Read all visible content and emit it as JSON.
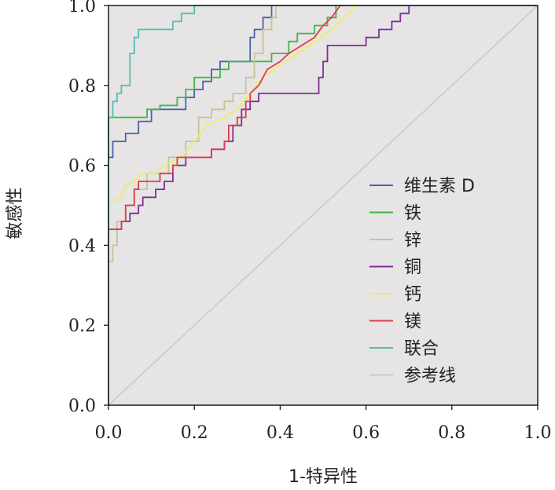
{
  "chart_data": {
    "type": "line",
    "title": "",
    "xlabel": "1-特异性",
    "ylabel": "敏感性",
    "xlim": [
      0,
      1
    ],
    "ylim": [
      0,
      1
    ],
    "x_ticks": [
      "0.0",
      "0.2",
      "0.4",
      "0.6",
      "0.8",
      "1.0"
    ],
    "y_ticks": [
      "0.0",
      "0.2",
      "0.4",
      "0.6",
      "0.8",
      "1.0"
    ],
    "grid": false,
    "legend_position": "right",
    "background": "#e6e4e4",
    "series": [
      {
        "name": "维生素 D",
        "color": "#4a61b0",
        "points": [
          [
            0,
            0
          ],
          [
            0,
            0.62
          ],
          [
            0.01,
            0.62
          ],
          [
            0.01,
            0.66
          ],
          [
            0.04,
            0.66
          ],
          [
            0.04,
            0.68
          ],
          [
            0.07,
            0.68
          ],
          [
            0.07,
            0.71
          ],
          [
            0.1,
            0.71
          ],
          [
            0.1,
            0.74
          ],
          [
            0.18,
            0.74
          ],
          [
            0.18,
            0.77
          ],
          [
            0.2,
            0.77
          ],
          [
            0.2,
            0.79
          ],
          [
            0.22,
            0.79
          ],
          [
            0.22,
            0.81
          ],
          [
            0.24,
            0.81
          ],
          [
            0.24,
            0.84
          ],
          [
            0.26,
            0.84
          ],
          [
            0.26,
            0.86
          ],
          [
            0.33,
            0.86
          ],
          [
            0.33,
            0.92
          ],
          [
            0.34,
            0.92
          ],
          [
            0.34,
            0.94
          ],
          [
            0.36,
            0.94
          ],
          [
            0.36,
            0.97
          ],
          [
            0.38,
            0.97
          ],
          [
            0.38,
            1.0
          ],
          [
            1,
            1
          ]
        ]
      },
      {
        "name": "铁",
        "color": "#3fb64a",
        "points": [
          [
            0,
            0
          ],
          [
            0,
            0.72
          ],
          [
            0.09,
            0.72
          ],
          [
            0.09,
            0.74
          ],
          [
            0.12,
            0.74
          ],
          [
            0.12,
            0.75
          ],
          [
            0.16,
            0.75
          ],
          [
            0.16,
            0.77
          ],
          [
            0.18,
            0.77
          ],
          [
            0.18,
            0.79
          ],
          [
            0.2,
            0.79
          ],
          [
            0.2,
            0.82
          ],
          [
            0.26,
            0.82
          ],
          [
            0.26,
            0.84
          ],
          [
            0.28,
            0.84
          ],
          [
            0.28,
            0.86
          ],
          [
            0.38,
            0.86
          ],
          [
            0.38,
            0.88
          ],
          [
            0.42,
            0.88
          ],
          [
            0.42,
            0.91
          ],
          [
            0.44,
            0.91
          ],
          [
            0.44,
            0.93
          ],
          [
            0.48,
            0.93
          ],
          [
            0.48,
            0.95
          ],
          [
            0.51,
            0.95
          ],
          [
            0.51,
            0.97
          ],
          [
            0.53,
            0.97
          ],
          [
            0.53,
            1.0
          ],
          [
            1,
            1
          ]
        ]
      },
      {
        "name": "锌",
        "color": "#c4c594",
        "points": [
          [
            0,
            0
          ],
          [
            0,
            0.36
          ],
          [
            0.01,
            0.36
          ],
          [
            0.01,
            0.4
          ],
          [
            0.02,
            0.4
          ],
          [
            0.02,
            0.46
          ],
          [
            0.04,
            0.46
          ],
          [
            0.04,
            0.5
          ],
          [
            0.06,
            0.5
          ],
          [
            0.06,
            0.54
          ],
          [
            0.09,
            0.54
          ],
          [
            0.09,
            0.58
          ],
          [
            0.14,
            0.58
          ],
          [
            0.14,
            0.62
          ],
          [
            0.18,
            0.62
          ],
          [
            0.18,
            0.66
          ],
          [
            0.21,
            0.66
          ],
          [
            0.21,
            0.72
          ],
          [
            0.24,
            0.72
          ],
          [
            0.24,
            0.74
          ],
          [
            0.27,
            0.74
          ],
          [
            0.27,
            0.76
          ],
          [
            0.29,
            0.76
          ],
          [
            0.29,
            0.78
          ],
          [
            0.32,
            0.78
          ],
          [
            0.32,
            0.82
          ],
          [
            0.34,
            0.82
          ],
          [
            0.34,
            0.88
          ],
          [
            0.36,
            0.88
          ],
          [
            0.36,
            0.94
          ],
          [
            0.38,
            0.94
          ],
          [
            0.38,
            0.97
          ],
          [
            0.39,
            0.97
          ],
          [
            0.39,
            1.0
          ],
          [
            1,
            1
          ]
        ]
      },
      {
        "name": "铜",
        "color": "#7e2e9a",
        "points": [
          [
            0,
            0
          ],
          [
            0,
            0.44
          ],
          [
            0.03,
            0.44
          ],
          [
            0.03,
            0.46
          ],
          [
            0.05,
            0.46
          ],
          [
            0.05,
            0.48
          ],
          [
            0.07,
            0.48
          ],
          [
            0.07,
            0.5
          ],
          [
            0.08,
            0.5
          ],
          [
            0.08,
            0.52
          ],
          [
            0.11,
            0.52
          ],
          [
            0.11,
            0.54
          ],
          [
            0.13,
            0.54
          ],
          [
            0.13,
            0.56
          ],
          [
            0.15,
            0.56
          ],
          [
            0.15,
            0.6
          ],
          [
            0.18,
            0.6
          ],
          [
            0.18,
            0.62
          ],
          [
            0.24,
            0.62
          ],
          [
            0.24,
            0.64
          ],
          [
            0.27,
            0.64
          ],
          [
            0.27,
            0.66
          ],
          [
            0.29,
            0.66
          ],
          [
            0.29,
            0.7
          ],
          [
            0.31,
            0.7
          ],
          [
            0.31,
            0.74
          ],
          [
            0.33,
            0.74
          ],
          [
            0.33,
            0.76
          ],
          [
            0.35,
            0.76
          ],
          [
            0.35,
            0.78
          ],
          [
            0.49,
            0.78
          ],
          [
            0.49,
            0.82
          ],
          [
            0.5,
            0.82
          ],
          [
            0.5,
            0.86
          ],
          [
            0.51,
            0.86
          ],
          [
            0.51,
            0.9
          ],
          [
            0.6,
            0.9
          ],
          [
            0.6,
            0.92
          ],
          [
            0.63,
            0.92
          ],
          [
            0.63,
            0.94
          ],
          [
            0.66,
            0.94
          ],
          [
            0.66,
            0.96
          ],
          [
            0.68,
            0.96
          ],
          [
            0.68,
            0.98
          ],
          [
            0.7,
            0.98
          ],
          [
            0.7,
            1.0
          ],
          [
            1,
            1
          ]
        ]
      },
      {
        "name": "钙",
        "color": "#efef5e",
        "points": [
          [
            0,
            0
          ],
          [
            0,
            0.5
          ],
          [
            0.01,
            0.51
          ],
          [
            0.03,
            0.52
          ],
          [
            0.04,
            0.55
          ],
          [
            0.06,
            0.56
          ],
          [
            0.08,
            0.58
          ],
          [
            0.11,
            0.58
          ],
          [
            0.13,
            0.6
          ],
          [
            0.17,
            0.62
          ],
          [
            0.2,
            0.66
          ],
          [
            0.23,
            0.7
          ],
          [
            0.27,
            0.72
          ],
          [
            0.3,
            0.74
          ],
          [
            0.33,
            0.78
          ],
          [
            0.36,
            0.82
          ],
          [
            0.4,
            0.85
          ],
          [
            0.44,
            0.88
          ],
          [
            0.48,
            0.91
          ],
          [
            0.52,
            0.94
          ],
          [
            0.55,
            0.97
          ],
          [
            0.58,
            1.0
          ],
          [
            1,
            1
          ]
        ]
      },
      {
        "name": "镁",
        "color": "#e23a4d",
        "points": [
          [
            0,
            0
          ],
          [
            0,
            0.44
          ],
          [
            0.03,
            0.44
          ],
          [
            0.03,
            0.46
          ],
          [
            0.04,
            0.46
          ],
          [
            0.04,
            0.5
          ],
          [
            0.06,
            0.5
          ],
          [
            0.06,
            0.54
          ],
          [
            0.07,
            0.54
          ],
          [
            0.07,
            0.56
          ],
          [
            0.12,
            0.56
          ],
          [
            0.12,
            0.58
          ],
          [
            0.15,
            0.58
          ],
          [
            0.15,
            0.6
          ],
          [
            0.16,
            0.6
          ],
          [
            0.16,
            0.62
          ],
          [
            0.24,
            0.62
          ],
          [
            0.24,
            0.64
          ],
          [
            0.27,
            0.64
          ],
          [
            0.27,
            0.66
          ],
          [
            0.28,
            0.66
          ],
          [
            0.28,
            0.7
          ],
          [
            0.3,
            0.7
          ],
          [
            0.3,
            0.72
          ],
          [
            0.32,
            0.72
          ],
          [
            0.32,
            0.76
          ],
          [
            0.33,
            0.76
          ],
          [
            0.33,
            0.78
          ],
          [
            0.35,
            0.8
          ],
          [
            0.37,
            0.84
          ],
          [
            0.4,
            0.86
          ],
          [
            0.42,
            0.88
          ],
          [
            0.45,
            0.9
          ],
          [
            0.48,
            0.92
          ],
          [
            0.5,
            0.95
          ],
          [
            0.52,
            0.97
          ],
          [
            0.54,
            1.0
          ],
          [
            1,
            1
          ]
        ]
      },
      {
        "name": "联合",
        "color": "#4ec0b5",
        "points": [
          [
            0,
            0
          ],
          [
            0,
            0.72
          ],
          [
            0.01,
            0.72
          ],
          [
            0.01,
            0.76
          ],
          [
            0.02,
            0.76
          ],
          [
            0.02,
            0.78
          ],
          [
            0.03,
            0.78
          ],
          [
            0.03,
            0.8
          ],
          [
            0.05,
            0.8
          ],
          [
            0.05,
            0.88
          ],
          [
            0.06,
            0.88
          ],
          [
            0.06,
            0.92
          ],
          [
            0.07,
            0.92
          ],
          [
            0.07,
            0.94
          ],
          [
            0.15,
            0.94
          ],
          [
            0.15,
            0.96
          ],
          [
            0.17,
            0.96
          ],
          [
            0.17,
            0.98
          ],
          [
            0.2,
            0.98
          ],
          [
            0.2,
            1.0
          ],
          [
            1,
            1
          ]
        ]
      },
      {
        "name": "参考线",
        "color": "#c9c9c9",
        "points": [
          [
            0,
            0
          ],
          [
            1,
            1
          ]
        ]
      }
    ]
  }
}
